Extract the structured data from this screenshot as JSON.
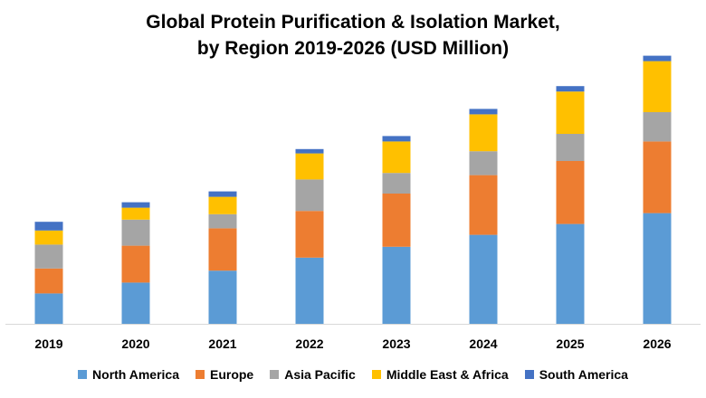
{
  "chart_data": {
    "type": "bar",
    "stacked": true,
    "title_lines": [
      "Global Protein Purification & Isolation Market,",
      "by Region 2019-2026 (USD Million)"
    ],
    "categories": [
      "2019",
      "2020",
      "2021",
      "2022",
      "2023",
      "2024",
      "2025",
      "2026"
    ],
    "series": [
      {
        "name": "North America",
        "color": "#5B9BD5",
        "values": [
          28,
          38,
          49,
          61,
          71,
          82,
          92,
          102
        ]
      },
      {
        "name": "Europe",
        "color": "#ED7D31",
        "values": [
          23,
          34,
          39,
          43,
          49,
          55,
          58,
          66
        ]
      },
      {
        "name": "Asia Pacific",
        "color": "#A5A5A5",
        "values": [
          22,
          24,
          13,
          29,
          19,
          22,
          25,
          27
        ]
      },
      {
        "name": "Middle East & Africa",
        "color": "#FFC000",
        "values": [
          13,
          11,
          16,
          24,
          29,
          34,
          39,
          47
        ]
      },
      {
        "name": "South America",
        "color": "#4472C4",
        "values": [
          8,
          5,
          5,
          4,
          5,
          5,
          5,
          5
        ]
      }
    ],
    "ylim": [
      0,
      250
    ],
    "y_axis_shown": false,
    "grid": false,
    "legend_position": "bottom"
  }
}
